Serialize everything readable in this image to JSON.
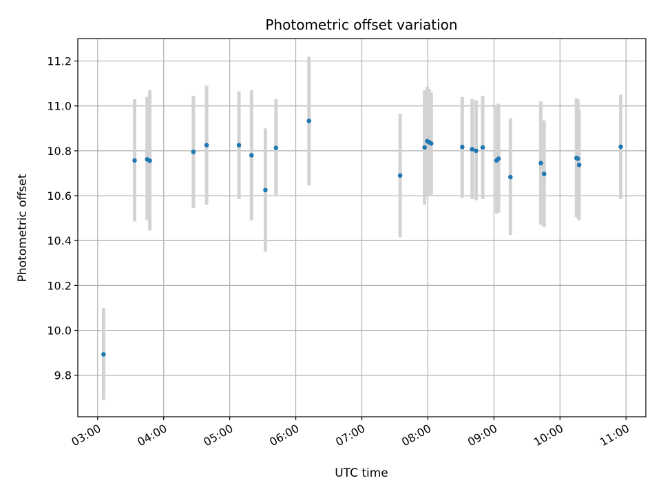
{
  "chart_data": {
    "type": "scatter",
    "title": "Photometric offset variation",
    "xlabel": "UTC time",
    "ylabel": "Photometric offset",
    "grid": true,
    "xlim_hours": [
      2.7,
      11.3
    ],
    "ylim": [
      9.615,
      11.3
    ],
    "x_ticks": [
      {
        "value": 3,
        "label": "03:00"
      },
      {
        "value": 4,
        "label": "04:00"
      },
      {
        "value": 5,
        "label": "05:00"
      },
      {
        "value": 6,
        "label": "06:00"
      },
      {
        "value": 7,
        "label": "07:00"
      },
      {
        "value": 8,
        "label": "08:00"
      },
      {
        "value": 9,
        "label": "09:00"
      },
      {
        "value": 10,
        "label": "10:00"
      },
      {
        "value": 11,
        "label": "11:00"
      }
    ],
    "y_ticks": [
      {
        "value": 9.8,
        "label": "9.8"
      },
      {
        "value": 10.0,
        "label": "10.0"
      },
      {
        "value": 10.2,
        "label": "10.2"
      },
      {
        "value": 10.4,
        "label": "10.4"
      },
      {
        "value": 10.6,
        "label": "10.6"
      },
      {
        "value": 10.8,
        "label": "10.8"
      },
      {
        "value": 11.0,
        "label": "11.0"
      },
      {
        "value": 11.2,
        "label": "11.2"
      }
    ],
    "point_color": "#1f77b4",
    "errorbar_color": "#d3d3d3",
    "points": [
      {
        "t": 3.09,
        "y": 9.893,
        "lo": 9.69,
        "hi": 10.1
      },
      {
        "t": 3.56,
        "y": 10.757,
        "lo": 10.485,
        "hi": 11.03
      },
      {
        "t": 3.75,
        "y": 10.762,
        "lo": 10.49,
        "hi": 11.04
      },
      {
        "t": 3.79,
        "y": 10.756,
        "lo": 10.445,
        "hi": 11.07
      },
      {
        "t": 4.45,
        "y": 10.795,
        "lo": 10.545,
        "hi": 11.045
      },
      {
        "t": 4.65,
        "y": 10.825,
        "lo": 10.56,
        "hi": 11.09
      },
      {
        "t": 5.14,
        "y": 10.825,
        "lo": 10.585,
        "hi": 11.065
      },
      {
        "t": 5.33,
        "y": 10.78,
        "lo": 10.49,
        "hi": 11.07
      },
      {
        "t": 5.54,
        "y": 10.625,
        "lo": 10.35,
        "hi": 10.9
      },
      {
        "t": 5.7,
        "y": 10.813,
        "lo": 10.6,
        "hi": 11.03
      },
      {
        "t": 6.2,
        "y": 10.933,
        "lo": 10.645,
        "hi": 11.22
      },
      {
        "t": 7.58,
        "y": 10.69,
        "lo": 10.415,
        "hi": 10.965
      },
      {
        "t": 7.95,
        "y": 10.815,
        "lo": 10.56,
        "hi": 11.07
      },
      {
        "t": 7.99,
        "y": 10.843,
        "lo": 10.6,
        "hi": 11.085
      },
      {
        "t": 8.02,
        "y": 10.838,
        "lo": 10.6,
        "hi": 11.075
      },
      {
        "t": 8.05,
        "y": 10.833,
        "lo": 10.605,
        "hi": 11.06
      },
      {
        "t": 8.52,
        "y": 10.817,
        "lo": 10.59,
        "hi": 11.04
      },
      {
        "t": 8.67,
        "y": 10.807,
        "lo": 10.585,
        "hi": 11.03
      },
      {
        "t": 8.73,
        "y": 10.8,
        "lo": 10.58,
        "hi": 11.025
      },
      {
        "t": 8.83,
        "y": 10.815,
        "lo": 10.585,
        "hi": 11.045
      },
      {
        "t": 9.04,
        "y": 10.757,
        "lo": 10.52,
        "hi": 11.0
      },
      {
        "t": 9.07,
        "y": 10.765,
        "lo": 10.525,
        "hi": 11.01
      },
      {
        "t": 9.25,
        "y": 10.683,
        "lo": 10.425,
        "hi": 10.945
      },
      {
        "t": 9.71,
        "y": 10.745,
        "lo": 10.47,
        "hi": 11.02
      },
      {
        "t": 9.76,
        "y": 10.697,
        "lo": 10.46,
        "hi": 10.935
      },
      {
        "t": 10.25,
        "y": 10.768,
        "lo": 10.505,
        "hi": 11.035
      },
      {
        "t": 10.27,
        "y": 10.765,
        "lo": 10.5,
        "hi": 11.03
      },
      {
        "t": 10.29,
        "y": 10.737,
        "lo": 10.49,
        "hi": 10.985
      },
      {
        "t": 10.92,
        "y": 10.818,
        "lo": 10.585,
        "hi": 11.05
      }
    ]
  }
}
